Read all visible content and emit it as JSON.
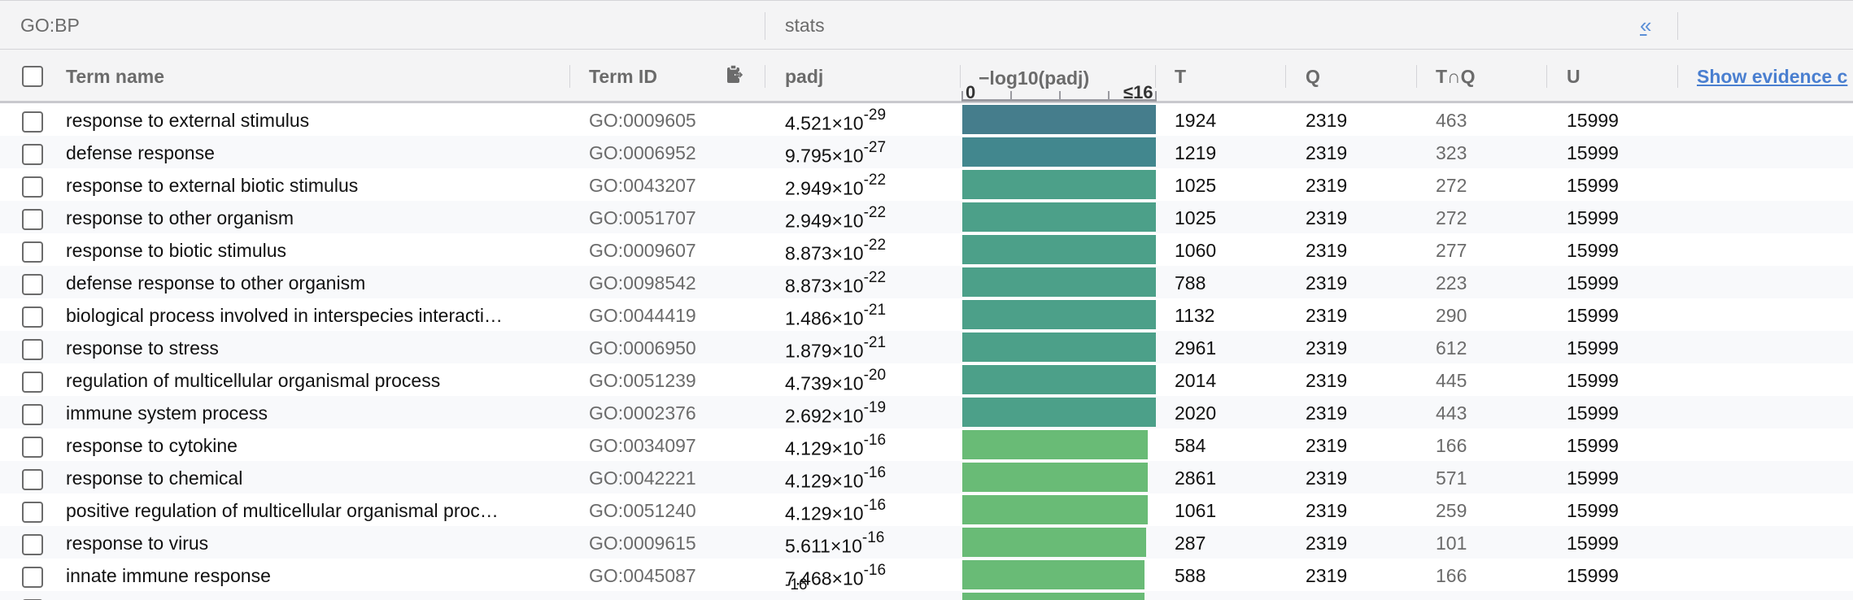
{
  "topbar": {
    "group": "GO:BP",
    "stats": "stats",
    "collapse_icon": "«"
  },
  "header": {
    "term_name": "Term name",
    "term_id": "Term ID",
    "padj": "padj",
    "neglog_label": "−log10(padj)",
    "axis_min": "0",
    "axis_max": "≤16",
    "T": "T",
    "Q": "Q",
    "TQ": "T∩Q",
    "U": "U",
    "evidence": "Show evidence c"
  },
  "rows": [
    {
      "term": "response to external stimulus",
      "id": "GO:0009605",
      "padj_mant": "4.521×10",
      "padj_exp": "-29",
      "bar_fraction": 1.0,
      "bar_color": "#457d8c",
      "T": "1924",
      "Q": "2319",
      "TQ": "463",
      "U": "15999"
    },
    {
      "term": "defense response",
      "id": "GO:0006952",
      "padj_mant": "9.795×10",
      "padj_exp": "-27",
      "bar_fraction": 1.0,
      "bar_color": "#42878e",
      "T": "1219",
      "Q": "2319",
      "TQ": "323",
      "U": "15999"
    },
    {
      "term": "response to external biotic stimulus",
      "id": "GO:0043207",
      "padj_mant": "2.949×10",
      "padj_exp": "-22",
      "bar_fraction": 1.0,
      "bar_color": "#4ca089",
      "T": "1025",
      "Q": "2319",
      "TQ": "272",
      "U": "15999"
    },
    {
      "term": "response to other organism",
      "id": "GO:0051707",
      "padj_mant": "2.949×10",
      "padj_exp": "-22",
      "bar_fraction": 1.0,
      "bar_color": "#4ca089",
      "T": "1025",
      "Q": "2319",
      "TQ": "272",
      "U": "15999"
    },
    {
      "term": "response to biotic stimulus",
      "id": "GO:0009607",
      "padj_mant": "8.873×10",
      "padj_exp": "-22",
      "bar_fraction": 1.0,
      "bar_color": "#4ca089",
      "T": "1060",
      "Q": "2319",
      "TQ": "277",
      "U": "15999"
    },
    {
      "term": "defense response to other organism",
      "id": "GO:0098542",
      "padj_mant": "8.873×10",
      "padj_exp": "-22",
      "bar_fraction": 1.0,
      "bar_color": "#4ca089",
      "T": "788",
      "Q": "2319",
      "TQ": "223",
      "U": "15999"
    },
    {
      "term": "biological process involved in interspecies interacti…",
      "id": "GO:0044419",
      "padj_mant": "1.486×10",
      "padj_exp": "-21",
      "bar_fraction": 1.0,
      "bar_color": "#4ca089",
      "T": "1132",
      "Q": "2319",
      "TQ": "290",
      "U": "15999"
    },
    {
      "term": "response to stress",
      "id": "GO:0006950",
      "padj_mant": "1.879×10",
      "padj_exp": "-21",
      "bar_fraction": 1.0,
      "bar_color": "#4ca089",
      "T": "2961",
      "Q": "2319",
      "TQ": "612",
      "U": "15999"
    },
    {
      "term": "regulation of multicellular organismal process",
      "id": "GO:0051239",
      "padj_mant": "4.739×10",
      "padj_exp": "-20",
      "bar_fraction": 1.0,
      "bar_color": "#4ca089",
      "T": "2014",
      "Q": "2319",
      "TQ": "445",
      "U": "15999"
    },
    {
      "term": "immune system process",
      "id": "GO:0002376",
      "padj_mant": "2.692×10",
      "padj_exp": "-19",
      "bar_fraction": 1.0,
      "bar_color": "#4ca089",
      "T": "2020",
      "Q": "2319",
      "TQ": "443",
      "U": "15999"
    },
    {
      "term": "response to cytokine",
      "id": "GO:0034097",
      "padj_mant": "4.129×10",
      "padj_exp": "-16",
      "bar_fraction": 0.96,
      "bar_color": "#69bb76",
      "T": "584",
      "Q": "2319",
      "TQ": "166",
      "U": "15999"
    },
    {
      "term": "response to chemical",
      "id": "GO:0042221",
      "padj_mant": "4.129×10",
      "padj_exp": "-16",
      "bar_fraction": 0.96,
      "bar_color": "#69bb76",
      "T": "2861",
      "Q": "2319",
      "TQ": "571",
      "U": "15999"
    },
    {
      "term": "positive regulation of multicellular organismal proc…",
      "id": "GO:0051240",
      "padj_mant": "4.129×10",
      "padj_exp": "-16",
      "bar_fraction": 0.96,
      "bar_color": "#69bb76",
      "T": "1061",
      "Q": "2319",
      "TQ": "259",
      "U": "15999"
    },
    {
      "term": "response to virus",
      "id": "GO:0009615",
      "padj_mant": "5.611×10",
      "padj_exp": "-16",
      "bar_fraction": 0.95,
      "bar_color": "#69bb76",
      "T": "287",
      "Q": "2319",
      "TQ": "101",
      "U": "15999"
    },
    {
      "term": "innate immune response",
      "id": "GO:0045087",
      "padj_mant": "7.468×10",
      "padj_exp": "-16",
      "bar_fraction": 0.94,
      "bar_color": "#69bb76",
      "T": "588",
      "Q": "2319",
      "TQ": "166",
      "U": "15999"
    },
    {
      "term": "",
      "id": "",
      "padj_mant": "",
      "padj_exp": "-16",
      "bar_fraction": 0.94,
      "bar_color": "#69bb76",
      "T": "",
      "Q": "",
      "TQ": "",
      "U": ""
    }
  ]
}
